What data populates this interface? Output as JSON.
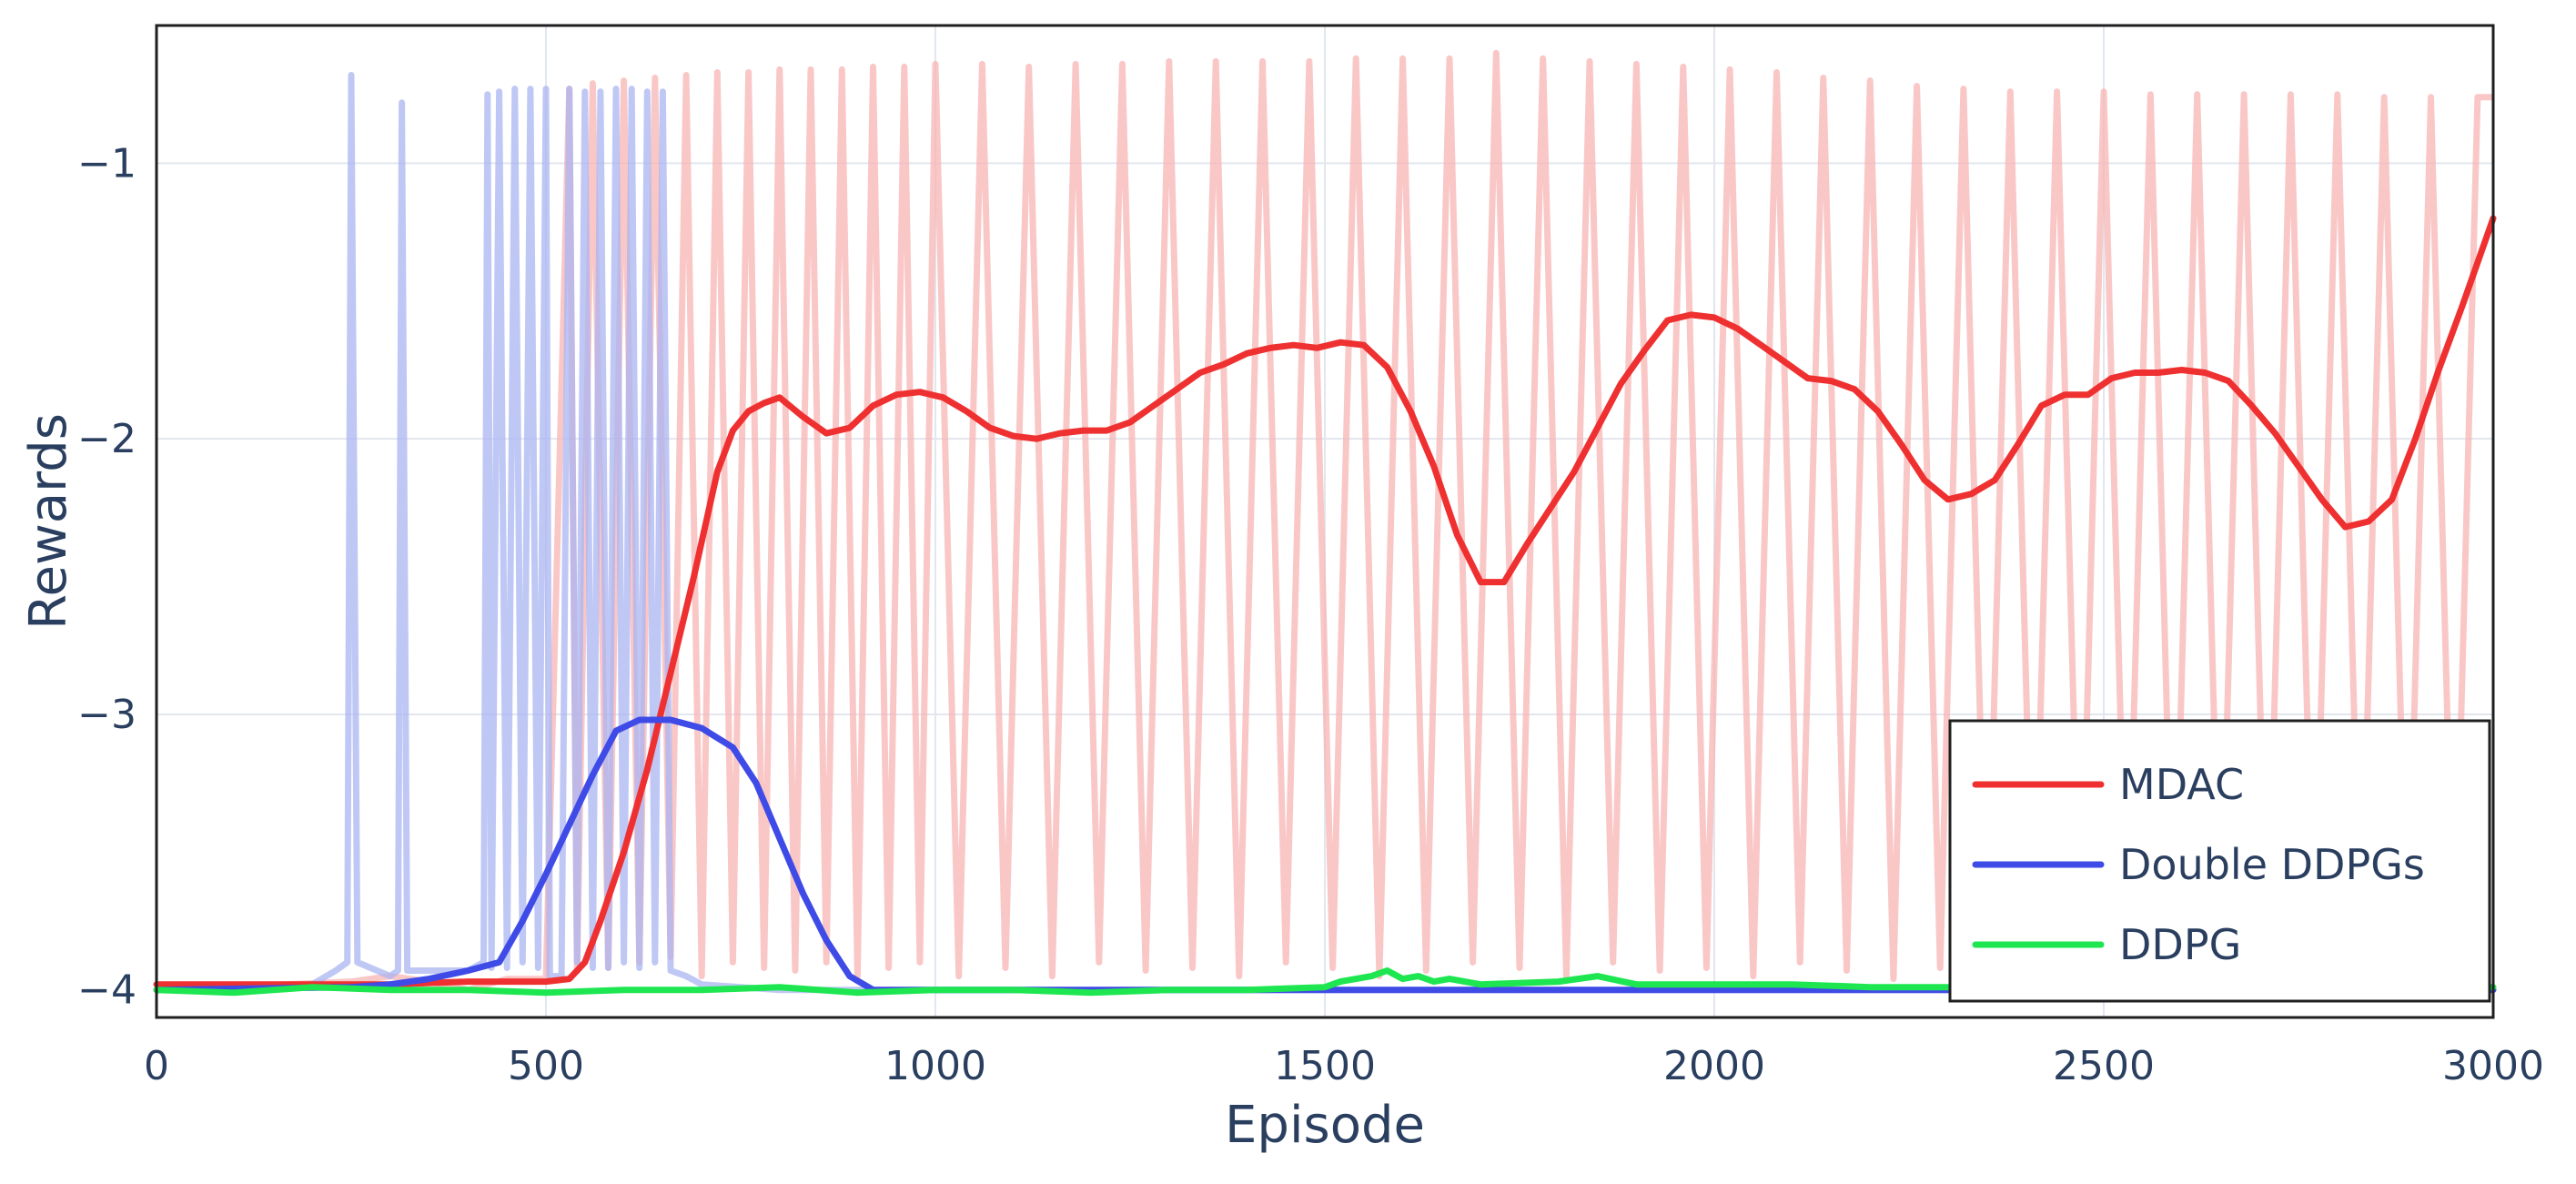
{
  "chart_data": {
    "type": "line",
    "title": "",
    "xlabel": "Episode",
    "ylabel": "Rewards",
    "xlim": [
      0,
      3000
    ],
    "ylim": [
      -4.1,
      -0.5
    ],
    "xticks": [
      0,
      500,
      1000,
      1500,
      2000,
      2500,
      3000
    ],
    "yticks": [
      -4,
      -3,
      -2,
      -1
    ],
    "xtick_labels": [
      "0",
      "500",
      "1000",
      "1500",
      "2000",
      "2500",
      "3000"
    ],
    "ytick_labels": [
      "−4",
      "−3",
      "−2",
      "−1"
    ],
    "grid": true,
    "legend_position": "bottom-right",
    "raw_series": [
      {
        "series_ref": "MDAC",
        "color": "#f8b4b4",
        "opacity": 0.75,
        "x": [
          0,
          250,
          300,
          350,
          400,
          450,
          500,
          530,
          540,
          560,
          580,
          600,
          620,
          640,
          660,
          680,
          700,
          720,
          740,
          760,
          780,
          800,
          820,
          840,
          860,
          880,
          900,
          920,
          940,
          960,
          980,
          1000,
          1030,
          1060,
          1090,
          1120,
          1150,
          1180,
          1210,
          1240,
          1270,
          1300,
          1330,
          1360,
          1390,
          1420,
          1450,
          1480,
          1510,
          1540,
          1570,
          1600,
          1630,
          1660,
          1690,
          1720,
          1750,
          1780,
          1810,
          1840,
          1870,
          1900,
          1930,
          1960,
          1990,
          2020,
          2050,
          2080,
          2110,
          2140,
          2170,
          2200,
          2230,
          2260,
          2290,
          2320,
          2350,
          2380,
          2410,
          2440,
          2470,
          2500,
          2530,
          2560,
          2590,
          2620,
          2650,
          2680,
          2710,
          2740,
          2770,
          2800,
          2830,
          2860,
          2890,
          2920,
          2950,
          2980,
          3000
        ],
        "y": [
          -4.0,
          -3.97,
          -3.95,
          -3.97,
          -4.0,
          -3.96,
          -3.96,
          -0.73,
          -3.93,
          -0.71,
          -3.92,
          -0.7,
          -3.9,
          -0.69,
          -3.88,
          -0.68,
          -3.95,
          -0.67,
          -3.9,
          -0.67,
          -3.92,
          -0.66,
          -3.93,
          -0.66,
          -3.9,
          -0.66,
          -3.95,
          -0.65,
          -3.92,
          -0.65,
          -3.9,
          -0.64,
          -3.95,
          -0.64,
          -3.92,
          -0.65,
          -3.95,
          -0.64,
          -3.9,
          -0.64,
          -3.93,
          -0.63,
          -3.92,
          -0.63,
          -3.95,
          -0.63,
          -3.9,
          -0.63,
          -3.92,
          -0.62,
          -3.95,
          -0.62,
          -3.93,
          -0.62,
          -3.9,
          -0.6,
          -3.92,
          -0.62,
          -3.95,
          -0.63,
          -3.9,
          -0.64,
          -3.93,
          -0.65,
          -3.92,
          -0.66,
          -3.95,
          -0.67,
          -3.9,
          -0.69,
          -3.93,
          -0.7,
          -3.96,
          -0.72,
          -3.92,
          -0.73,
          -3.95,
          -0.74,
          -3.93,
          -0.74,
          -3.9,
          -0.74,
          -3.92,
          -0.75,
          -3.95,
          -0.75,
          -3.9,
          -0.75,
          -3.95,
          -0.75,
          -3.93,
          -0.75,
          -3.9,
          -0.76,
          -3.92,
          -0.76,
          -3.95,
          -0.76,
          -0.76
        ]
      },
      {
        "series_ref": "Double DDPGs",
        "color": "#aab4f2",
        "opacity": 0.75,
        "x": [
          0,
          200,
          230,
          245,
          250,
          258,
          300,
          310,
          315,
          322,
          400,
          420,
          425,
          430,
          440,
          450,
          460,
          470,
          480,
          490,
          500,
          505,
          510,
          520,
          530,
          540,
          550,
          560,
          570,
          580,
          590,
          600,
          610,
          620,
          630,
          640,
          650,
          660,
          680,
          700,
          750,
          800,
          850,
          900,
          1000,
          1500,
          2000,
          2500,
          3000
        ],
        "y": [
          -4.0,
          -3.98,
          -3.93,
          -3.9,
          -0.68,
          -3.9,
          -3.95,
          -3.93,
          -0.78,
          -3.93,
          -3.93,
          -3.9,
          -0.75,
          -3.92,
          -0.74,
          -3.92,
          -0.73,
          -3.9,
          -0.73,
          -3.92,
          -0.73,
          -3.95,
          -3.95,
          -3.95,
          -0.73,
          -3.9,
          -0.74,
          -3.92,
          -0.74,
          -3.92,
          -0.73,
          -3.9,
          -0.73,
          -3.92,
          -0.74,
          -3.9,
          -0.74,
          -3.93,
          -3.95,
          -3.98,
          -3.99,
          -4.0,
          -4.0,
          -4.0,
          -4.0,
          -4.0,
          -4.0,
          -4.0,
          -4.0
        ]
      }
    ],
    "series": [
      {
        "name": "MDAC",
        "color": "#ef3030",
        "x": [
          0,
          300,
          400,
          500,
          530,
          550,
          570,
          600,
          630,
          660,
          690,
          720,
          740,
          760,
          780,
          800,
          830,
          860,
          890,
          920,
          950,
          980,
          1010,
          1040,
          1070,
          1100,
          1130,
          1160,
          1190,
          1220,
          1250,
          1280,
          1310,
          1340,
          1370,
          1400,
          1430,
          1460,
          1490,
          1520,
          1550,
          1580,
          1610,
          1640,
          1670,
          1700,
          1730,
          1760,
          1790,
          1820,
          1850,
          1880,
          1910,
          1940,
          1970,
          2000,
          2030,
          2060,
          2090,
          2120,
          2150,
          2180,
          2210,
          2240,
          2270,
          2300,
          2330,
          2360,
          2390,
          2420,
          2450,
          2480,
          2510,
          2540,
          2570,
          2600,
          2630,
          2660,
          2690,
          2720,
          2750,
          2780,
          2810,
          2840,
          2870,
          2900,
          2930,
          2960,
          3000
        ],
        "y": [
          -3.98,
          -3.98,
          -3.97,
          -3.97,
          -3.96,
          -3.9,
          -3.75,
          -3.5,
          -3.2,
          -2.85,
          -2.5,
          -2.12,
          -1.97,
          -1.9,
          -1.87,
          -1.85,
          -1.92,
          -1.98,
          -1.96,
          -1.88,
          -1.84,
          -1.83,
          -1.85,
          -1.9,
          -1.96,
          -1.99,
          -2.0,
          -1.98,
          -1.97,
          -1.97,
          -1.94,
          -1.88,
          -1.82,
          -1.76,
          -1.73,
          -1.69,
          -1.67,
          -1.66,
          -1.67,
          -1.65,
          -1.66,
          -1.74,
          -1.9,
          -2.1,
          -2.35,
          -2.52,
          -2.52,
          -2.38,
          -2.25,
          -2.12,
          -1.96,
          -1.8,
          -1.68,
          -1.57,
          -1.55,
          -1.56,
          -1.6,
          -1.66,
          -1.72,
          -1.78,
          -1.79,
          -1.82,
          -1.9,
          -2.02,
          -2.15,
          -2.22,
          -2.2,
          -2.15,
          -2.02,
          -1.88,
          -1.84,
          -1.84,
          -1.78,
          -1.76,
          -1.76,
          -1.75,
          -1.76,
          -1.79,
          -1.88,
          -1.98,
          -2.1,
          -2.22,
          -2.32,
          -2.3,
          -2.22,
          -2.0,
          -1.75,
          -1.52,
          -1.2
        ]
      },
      {
        "name": "Double DDPGs",
        "color": "#3f4be6",
        "x": [
          0,
          250,
          300,
          350,
          400,
          440,
          470,
          500,
          530,
          560,
          590,
          620,
          660,
          700,
          740,
          770,
          800,
          830,
          860,
          890,
          920,
          950,
          1000,
          1500,
          2000,
          2500,
          3000
        ],
        "y": [
          -4.0,
          -3.99,
          -3.98,
          -3.96,
          -3.93,
          -3.9,
          -3.75,
          -3.58,
          -3.4,
          -3.22,
          -3.06,
          -3.02,
          -3.02,
          -3.05,
          -3.12,
          -3.25,
          -3.45,
          -3.65,
          -3.82,
          -3.95,
          -4.0,
          -4.0,
          -4.0,
          -4.0,
          -4.0,
          -4.0,
          -4.0
        ]
      },
      {
        "name": "DDPG",
        "color": "#1de650",
        "x": [
          0,
          100,
          200,
          300,
          400,
          500,
          600,
          700,
          800,
          900,
          1000,
          1100,
          1200,
          1300,
          1400,
          1500,
          1520,
          1540,
          1560,
          1580,
          1600,
          1620,
          1640,
          1660,
          1700,
          1800,
          1850,
          1900,
          2000,
          2100,
          2200,
          2300,
          2400,
          2500,
          2600,
          2700,
          2800,
          2900,
          3000
        ],
        "y": [
          -4.0,
          -4.01,
          -3.99,
          -4.0,
          -4.0,
          -4.01,
          -4.0,
          -4.0,
          -3.99,
          -4.01,
          -4.0,
          -4.0,
          -4.01,
          -4.0,
          -4.0,
          -3.99,
          -3.97,
          -3.96,
          -3.95,
          -3.93,
          -3.96,
          -3.95,
          -3.97,
          -3.96,
          -3.98,
          -3.97,
          -3.95,
          -3.98,
          -3.98,
          -3.98,
          -3.99,
          -3.99,
          -3.99,
          -3.99,
          -3.99,
          -3.99,
          -3.99,
          -3.99,
          -3.99
        ]
      }
    ]
  }
}
